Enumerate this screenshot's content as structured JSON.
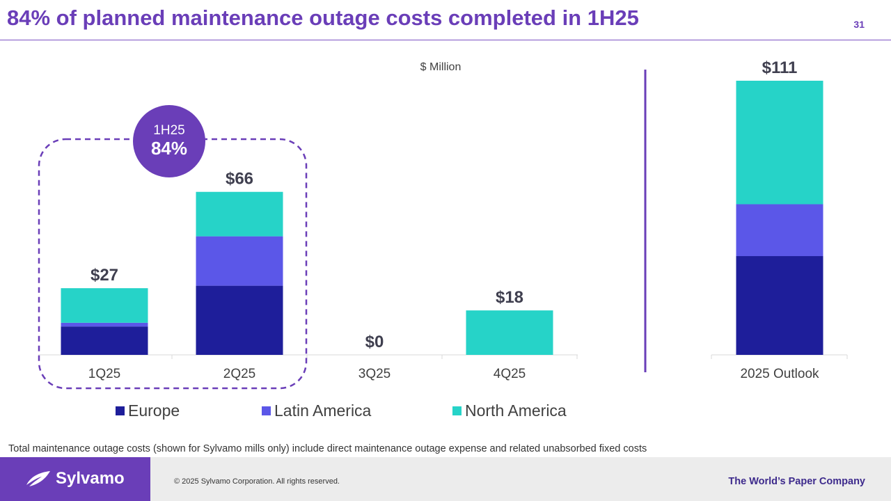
{
  "slide": {
    "title": "84% of planned maintenance outage costs completed in 1H25",
    "page_number": "31",
    "footnote": "Total maintenance outage costs (shown for Sylvamo mills only) include direct maintenance outage expense and related unabsorbed fixed costs"
  },
  "footer": {
    "brand": "Sylvamo",
    "copyright": "© 2025 Sylvamo Corporation. All rights reserved.",
    "tagline": "The World’s Paper Company"
  },
  "colors": {
    "accent": "#6a3eb8",
    "europe": "#1e1e9a",
    "latin_america": "#5b57e8",
    "north_america": "#26d3c8"
  },
  "chart_data": {
    "type": "bar",
    "stacked": true,
    "ylabel": "$ Million",
    "ylim": [
      0,
      111
    ],
    "categories": [
      "1Q25",
      "2Q25",
      "3Q25",
      "4Q25",
      "2025 Outlook"
    ],
    "series": [
      {
        "name": "Europe",
        "color": "#1e1e9a",
        "values": [
          11.5,
          28,
          0,
          0,
          40
        ]
      },
      {
        "name": "Latin America",
        "color": "#5b57e8",
        "values": [
          1.5,
          20,
          0,
          0,
          21
        ]
      },
      {
        "name": "North America",
        "color": "#26d3c8",
        "values": [
          14,
          18,
          0,
          18,
          50
        ]
      }
    ],
    "totals": [
      "$27",
      "$66",
      "$0",
      "$18",
      "$111"
    ],
    "callout": {
      "label": "1H25",
      "value": "84%"
    },
    "legend": "bottom"
  }
}
